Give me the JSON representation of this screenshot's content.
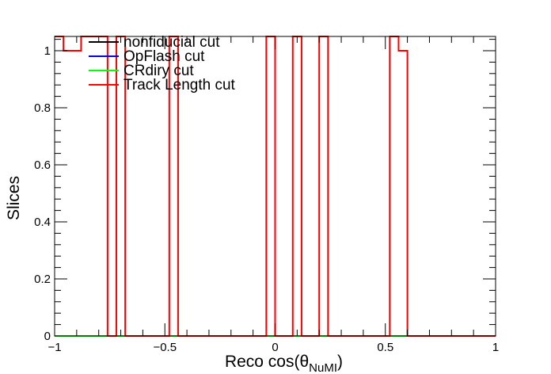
{
  "chart_data": {
    "type": "line",
    "style": "step-histogram",
    "title": "",
    "xlabel": "Reco cos(θ",
    "xlabel_subscript": "NuMI",
    "xlabel_suffix": ")",
    "ylabel": "Slices",
    "xlim": [
      -1,
      1
    ],
    "ylim": [
      0,
      1.05
    ],
    "xticks": [
      {
        "value": -1,
        "label": "−1"
      },
      {
        "value": -0.5,
        "label": "−0.5"
      },
      {
        "value": 0,
        "label": "0"
      },
      {
        "value": 0.5,
        "label": "0.5"
      },
      {
        "value": 1,
        "label": "1"
      }
    ],
    "yticks": [
      {
        "value": 0,
        "label": "0"
      },
      {
        "value": 0.2,
        "label": "0.2"
      },
      {
        "value": 0.4,
        "label": "0.4"
      },
      {
        "value": 0.6,
        "label": "0.6"
      },
      {
        "value": 0.8,
        "label": "0.8"
      },
      {
        "value": 1,
        "label": "1"
      }
    ],
    "grid": false,
    "legend_position": "top-left",
    "bins": {
      "min": -1,
      "max": 1,
      "count": 50
    },
    "series": [
      {
        "name": "nonfiducial cut",
        "color": "#000000",
        "nonzero_bins": {}
      },
      {
        "name": "OpFlash cut",
        "color": "#0000ff",
        "nonzero_bins": {}
      },
      {
        "name": "CRdiry cut",
        "color": "#00ff00",
        "nonzero_bins": {}
      },
      {
        "name": "Track Length cut",
        "color": "#ff0000",
        "nonzero_bins": {
          "0": 1.05,
          "1": 1.0,
          "2": 1.0,
          "3": 1.05,
          "4": 1.05,
          "5": 1.05,
          "7": 1.05,
          "13": 1.05,
          "24": 1.05,
          "27": 1.05,
          "30": 1.05,
          "38": 1.05,
          "39": 1.0
        }
      }
    ]
  }
}
